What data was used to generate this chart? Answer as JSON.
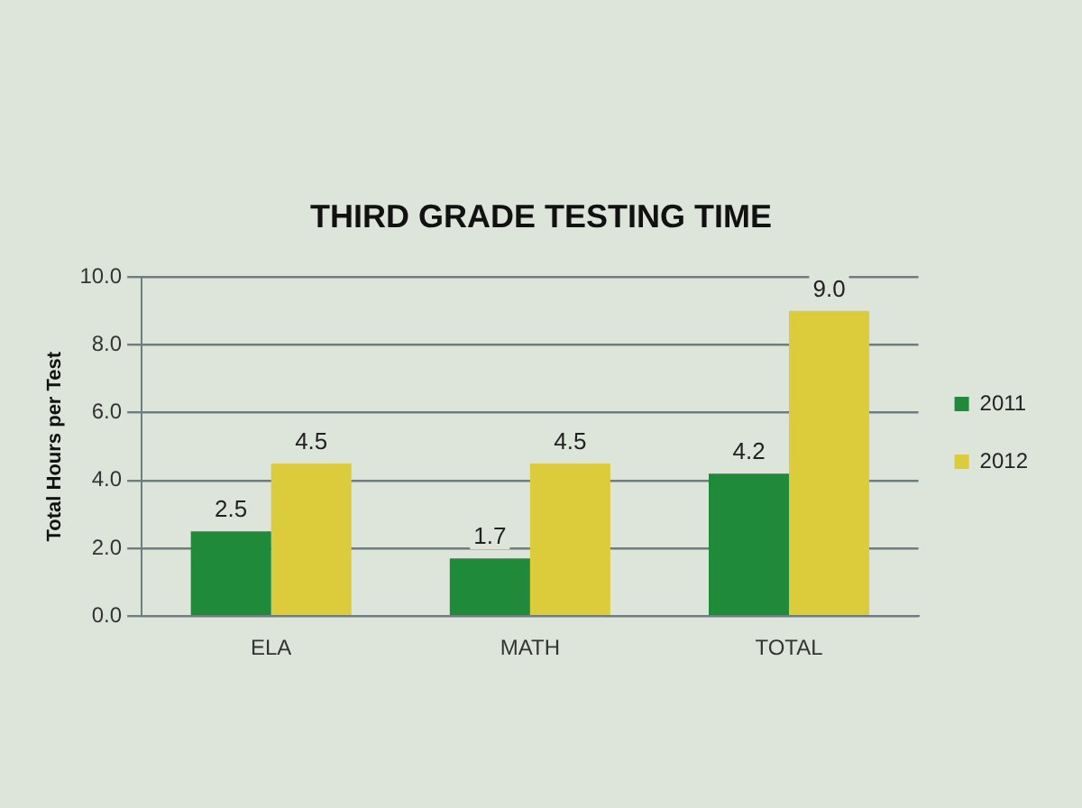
{
  "chart_data": {
    "type": "bar",
    "title": "THIRD GRADE TESTING TIME",
    "ylabel": "Total Hours per Test",
    "categories": [
      "ELA",
      "MATH",
      "TOTAL"
    ],
    "series": [
      {
        "name": "2011",
        "color": "#1f8a3a",
        "values": [
          2.5,
          1.7,
          4.2
        ],
        "value_labels": [
          "2.5",
          "1.7",
          "4.2"
        ]
      },
      {
        "name": "2012",
        "color": "#dccb3a",
        "values": [
          4.5,
          4.5,
          9.0
        ],
        "value_labels": [
          "4.5",
          "4.5",
          "9.0"
        ]
      }
    ],
    "ylim": [
      0,
      10
    ],
    "yticks": [
      {
        "value": 0,
        "label": "0.0"
      },
      {
        "value": 2,
        "label": "2.0"
      },
      {
        "value": 4,
        "label": "4.0"
      },
      {
        "value": 6,
        "label": "6.0"
      },
      {
        "value": 8,
        "label": "8.0"
      },
      {
        "value": 10,
        "label": "10.0"
      }
    ],
    "grid": "y",
    "legend": "right"
  }
}
